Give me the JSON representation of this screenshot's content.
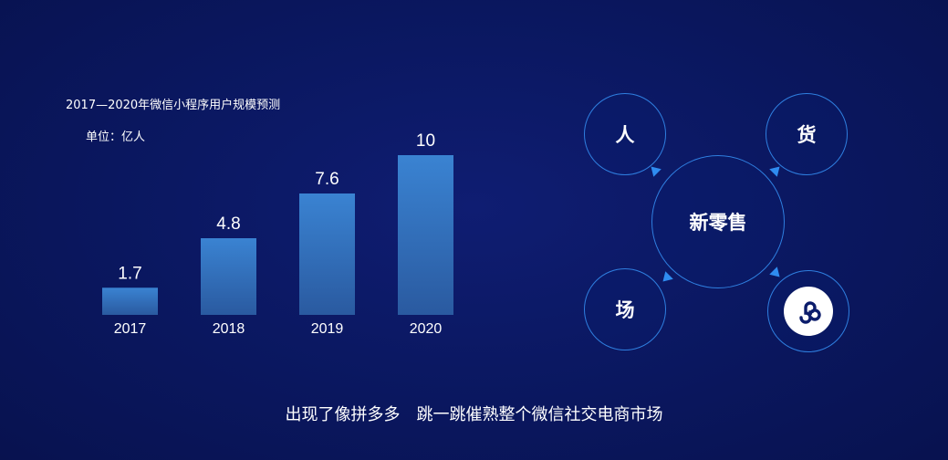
{
  "chart_data": {
    "type": "bar",
    "title": "2017—2020年微信小程序用户规模预测",
    "unit": "单位：亿人",
    "categories": [
      "2017",
      "2018",
      "2019",
      "2020"
    ],
    "values": [
      1.7,
      4.8,
      7.6,
      10
    ],
    "value_labels": [
      "1.7",
      "4.8",
      "7.6",
      "10"
    ],
    "ylim": [
      0,
      10
    ],
    "grid": false,
    "colors": {
      "bar_top": "#3a83d2",
      "bar_bottom": "#2a5aa0"
    }
  },
  "diagram": {
    "center": "新零售",
    "nodes": [
      "人",
      "货",
      "场"
    ],
    "logo_icon": "wechat-mini-program-icon",
    "colors": {
      "ring": "#2f7fe0",
      "arrow": "#2f8cf0"
    }
  },
  "caption": {
    "part1": "出现了像拼多多",
    "part2": "跳一跳催熟整个微信社交电商市场"
  }
}
